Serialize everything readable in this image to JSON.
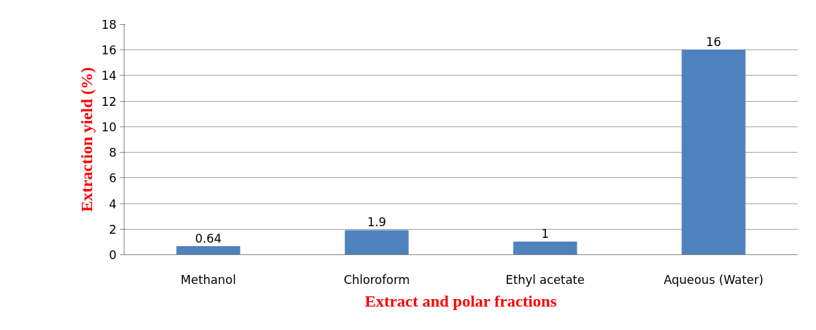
{
  "chart_data": {
    "type": "bar",
    "xlabel": "Extract and polar fractions",
    "ylabel": "Extraction yield (%)",
    "categories": [
      "Methanol",
      "Chloroform",
      "Ethyl acetate",
      "Aqueous (Water)"
    ],
    "values": [
      0.64,
      1.9,
      1,
      16
    ],
    "color": "#4f81bd",
    "ylim": [
      0,
      18
    ],
    "yticks": [
      0,
      2,
      4,
      6,
      8,
      10,
      12,
      14,
      16,
      18
    ],
    "grid": "y",
    "data_labels": true
  }
}
